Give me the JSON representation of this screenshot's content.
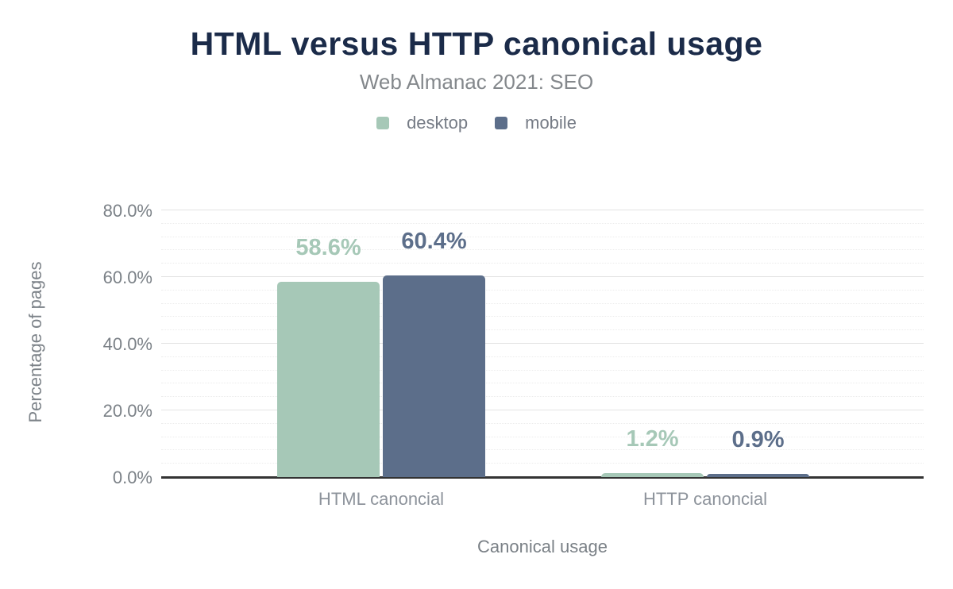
{
  "chart_data": {
    "type": "bar",
    "title": "HTML versus HTTP canonical usage",
    "subtitle": "Web Almanac 2021: SEO",
    "categories": [
      "HTML canoncial",
      "HTTP canoncial"
    ],
    "series": [
      {
        "name": "desktop",
        "color": "#a6c8b7",
        "values": [
          58.6,
          1.2
        ],
        "value_labels": [
          "58.6%",
          "1.2%"
        ]
      },
      {
        "name": "mobile",
        "color": "#5c6e8a",
        "values": [
          60.4,
          0.9
        ],
        "value_labels": [
          "60.4%",
          "0.9%"
        ]
      }
    ],
    "xlabel": "Canonical usage",
    "ylabel": "Percentage of pages",
    "ylim": [
      0,
      80
    ],
    "yticks": [
      "0.0%",
      "20.0%",
      "40.0%",
      "60.0%",
      "80.0%"
    ],
    "ytick_values": [
      0,
      20,
      40,
      60,
      80
    ],
    "minor_grid_step": 4,
    "major_grid_step": 20,
    "grid": true,
    "legend_position": "top",
    "colors": {
      "title": "#1b2b49",
      "subtitle": "#84888c",
      "axis_text": "#7b8187",
      "baseline": "#333333",
      "gridline_major": "#e3e3e3",
      "gridline_minor": "#ececec",
      "background": "#ffffff"
    }
  }
}
